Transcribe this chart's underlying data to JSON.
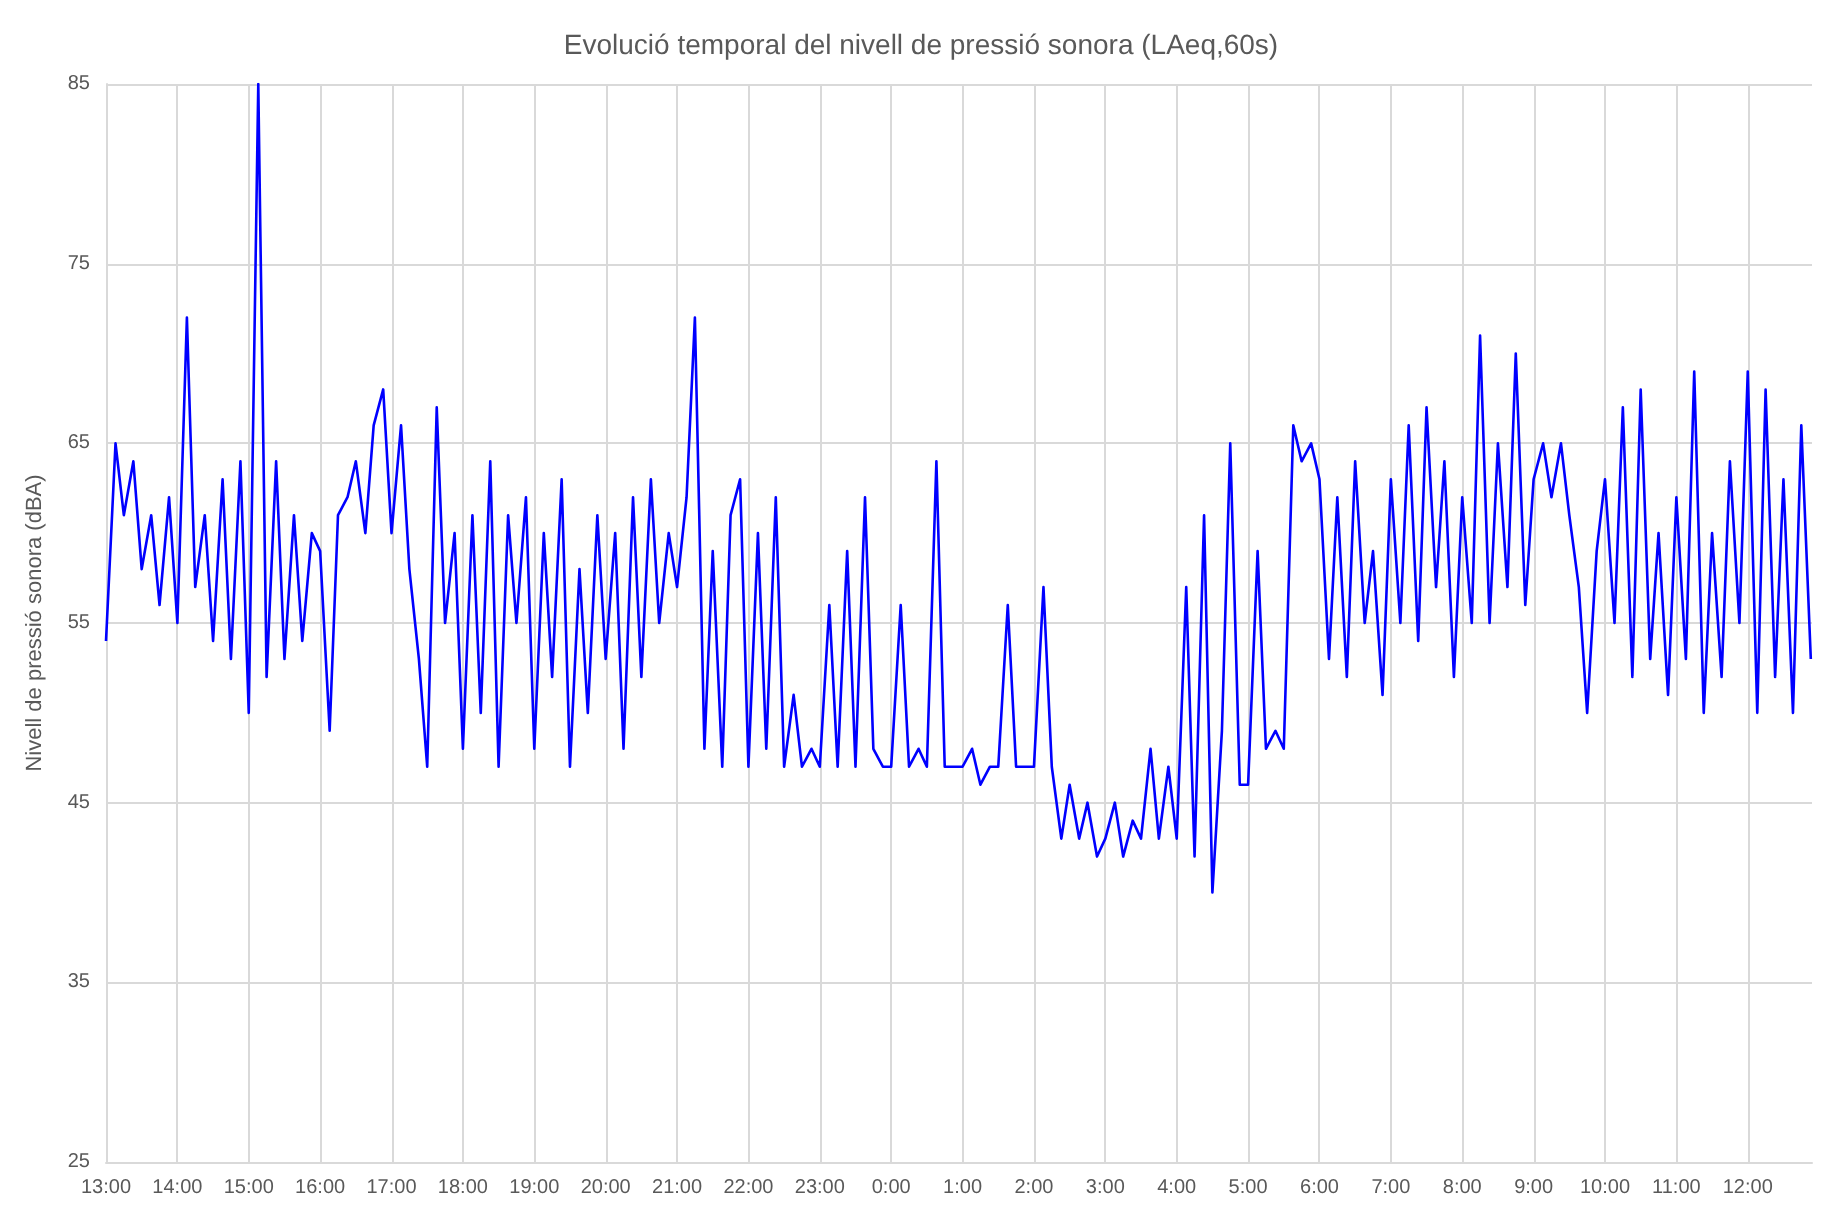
{
  "chart_data": {
    "type": "line",
    "title": "Evolució temporal del nivell de pressió sonora (LAeq,60s)",
    "ylabel": "Nivell de pressió sonora (dBA)",
    "x": [
      "2000-01-01T13:00",
      "2000-01-01T13:08",
      "2000-01-01T13:15",
      "2000-01-01T13:23",
      "2000-01-01T13:30",
      "2000-01-01T13:38",
      "2000-01-01T13:45",
      "2000-01-01T13:53",
      "2000-01-01T14:00",
      "2000-01-01T14:08",
      "2000-01-01T14:15",
      "2000-01-01T14:23",
      "2000-01-01T14:30",
      "2000-01-01T14:38",
      "2000-01-01T14:45",
      "2000-01-01T14:53",
      "2000-01-01T15:00",
      "2000-01-01T15:08",
      "2000-01-01T15:15",
      "2000-01-01T15:23",
      "2000-01-01T15:30",
      "2000-01-01T15:38",
      "2000-01-01T15:45",
      "2000-01-01T15:53",
      "2000-01-01T16:00",
      "2000-01-01T16:08",
      "2000-01-01T16:15",
      "2000-01-01T16:23",
      "2000-01-01T16:30",
      "2000-01-01T16:38",
      "2000-01-01T16:45",
      "2000-01-01T16:53",
      "2000-01-01T17:00",
      "2000-01-01T17:08",
      "2000-01-01T17:15",
      "2000-01-01T17:23",
      "2000-01-01T17:30",
      "2000-01-01T17:38",
      "2000-01-01T17:45",
      "2000-01-01T17:53",
      "2000-01-01T18:00",
      "2000-01-01T18:08",
      "2000-01-01T18:15",
      "2000-01-01T18:23",
      "2000-01-01T18:30",
      "2000-01-01T18:38",
      "2000-01-01T18:45",
      "2000-01-01T18:53",
      "2000-01-01T19:00",
      "2000-01-01T19:08",
      "2000-01-01T19:15",
      "2000-01-01T19:23",
      "2000-01-01T19:30",
      "2000-01-01T19:38",
      "2000-01-01T19:45",
      "2000-01-01T19:53",
      "2000-01-01T20:00",
      "2000-01-01T20:08",
      "2000-01-01T20:15",
      "2000-01-01T20:23",
      "2000-01-01T20:30",
      "2000-01-01T20:38",
      "2000-01-01T20:45",
      "2000-01-01T20:53",
      "2000-01-01T21:00",
      "2000-01-01T21:08",
      "2000-01-01T21:15",
      "2000-01-01T21:23",
      "2000-01-01T21:30",
      "2000-01-01T21:38",
      "2000-01-01T21:45",
      "2000-01-01T21:53",
      "2000-01-01T22:00",
      "2000-01-01T22:08",
      "2000-01-01T22:15",
      "2000-01-01T22:23",
      "2000-01-01T22:30",
      "2000-01-01T22:38",
      "2000-01-01T22:45",
      "2000-01-01T22:53",
      "2000-01-01T23:00",
      "2000-01-01T23:08",
      "2000-01-01T23:15",
      "2000-01-01T23:23",
      "2000-01-01T23:30",
      "2000-01-01T23:38",
      "2000-01-01T23:45",
      "2000-01-01T23:53",
      "2000-01-02T00:00",
      "2000-01-02T00:08",
      "2000-01-02T00:15",
      "2000-01-02T00:23",
      "2000-01-02T00:30",
      "2000-01-02T00:38",
      "2000-01-02T00:45",
      "2000-01-02T00:53",
      "2000-01-02T01:00",
      "2000-01-02T01:08",
      "2000-01-02T01:15",
      "2000-01-02T01:23",
      "2000-01-02T01:30",
      "2000-01-02T01:38",
      "2000-01-02T01:45",
      "2000-01-02T01:53",
      "2000-01-02T02:00",
      "2000-01-02T02:08",
      "2000-01-02T02:15",
      "2000-01-02T02:23",
      "2000-01-02T02:30",
      "2000-01-02T02:38",
      "2000-01-02T02:45",
      "2000-01-02T02:53",
      "2000-01-02T03:00",
      "2000-01-02T03:08",
      "2000-01-02T03:15",
      "2000-01-02T03:23",
      "2000-01-02T03:30",
      "2000-01-02T03:38",
      "2000-01-02T03:45",
      "2000-01-02T03:53",
      "2000-01-02T04:00",
      "2000-01-02T04:08",
      "2000-01-02T04:15",
      "2000-01-02T04:23",
      "2000-01-02T04:30",
      "2000-01-02T04:38",
      "2000-01-02T04:45",
      "2000-01-02T04:53",
      "2000-01-02T05:00",
      "2000-01-02T05:08",
      "2000-01-02T05:15",
      "2000-01-02T05:23",
      "2000-01-02T05:30",
      "2000-01-02T05:38",
      "2000-01-02T05:45",
      "2000-01-02T05:53",
      "2000-01-02T06:00",
      "2000-01-02T06:08",
      "2000-01-02T06:15",
      "2000-01-02T06:23",
      "2000-01-02T06:30",
      "2000-01-02T06:38",
      "2000-01-02T06:45",
      "2000-01-02T06:53",
      "2000-01-02T07:00",
      "2000-01-02T07:08",
      "2000-01-02T07:15",
      "2000-01-02T07:23",
      "2000-01-02T07:30",
      "2000-01-02T07:38",
      "2000-01-02T07:45",
      "2000-01-02T07:53",
      "2000-01-02T08:00",
      "2000-01-02T08:08",
      "2000-01-02T08:15",
      "2000-01-02T08:23",
      "2000-01-02T08:30",
      "2000-01-02T08:38",
      "2000-01-02T08:45",
      "2000-01-02T08:53",
      "2000-01-02T09:00",
      "2000-01-02T09:08",
      "2000-01-02T09:15",
      "2000-01-02T09:23",
      "2000-01-02T09:30",
      "2000-01-02T09:38",
      "2000-01-02T09:45",
      "2000-01-02T09:53",
      "2000-01-02T10:00",
      "2000-01-02T10:08",
      "2000-01-02T10:15",
      "2000-01-02T10:23",
      "2000-01-02T10:30",
      "2000-01-02T10:38",
      "2000-01-02T10:45",
      "2000-01-02T10:53",
      "2000-01-02T11:00",
      "2000-01-02T11:08",
      "2000-01-02T11:15",
      "2000-01-02T11:23",
      "2000-01-02T11:30",
      "2000-01-02T11:38",
      "2000-01-02T11:45",
      "2000-01-02T11:53",
      "2000-01-02T12:00",
      "2000-01-02T12:08",
      "2000-01-02T12:15",
      "2000-01-02T12:23",
      "2000-01-02T12:30",
      "2000-01-02T12:38",
      "2000-01-02T12:45",
      "2000-01-02T12:53"
    ],
    "series": [
      {
        "color": "#0000ff",
        "values": [
          54,
          65,
          61,
          64,
          58,
          61,
          56,
          62,
          55,
          72,
          57,
          61,
          54,
          63,
          53,
          64,
          50,
          85,
          52,
          64,
          53,
          61,
          54,
          60,
          59,
          49,
          61,
          62,
          64,
          60,
          66,
          68,
          60,
          66,
          58,
          53,
          47,
          67,
          55,
          60,
          48,
          61,
          50,
          64,
          47,
          61,
          55,
          62,
          48,
          60,
          52,
          63,
          47,
          58,
          50,
          61,
          53,
          60,
          48,
          62,
          52,
          63,
          55,
          60,
          57,
          62,
          72,
          48,
          59,
          47,
          61,
          63,
          47,
          60,
          48,
          62,
          47,
          51,
          47,
          48,
          47,
          56,
          47,
          59,
          47,
          62,
          48,
          47,
          47,
          56,
          47,
          48,
          47,
          64,
          47,
          47,
          47,
          48,
          46,
          47,
          47,
          56,
          47,
          47,
          47,
          57,
          47,
          43,
          46,
          43,
          45,
          42,
          43,
          45,
          42,
          44,
          43,
          48,
          43,
          47,
          43,
          57,
          42,
          61,
          40,
          49,
          65,
          46,
          46,
          59,
          48,
          49,
          48,
          66,
          64,
          65,
          63,
          53,
          62,
          52,
          64,
          55,
          59,
          51,
          63,
          55,
          66,
          54,
          67,
          57,
          64,
          52,
          62,
          55,
          71,
          55,
          65,
          57,
          70,
          56,
          63,
          65,
          62,
          65,
          61,
          57,
          50,
          59,
          63,
          55,
          67,
          52,
          68,
          53,
          60,
          51,
          62,
          53,
          69,
          50,
          60,
          52,
          64,
          55,
          69,
          50,
          68,
          52,
          63,
          50,
          66,
          53
        ]
      }
    ],
    "xlim": [
      "2000-01-01T13:00",
      "2000-01-02T12:54"
    ],
    "xticks": [
      {
        "value": "2000-01-01T13:00",
        "label": "13:00"
      },
      {
        "value": "2000-01-01T14:00",
        "label": "14:00"
      },
      {
        "value": "2000-01-01T15:00",
        "label": "15:00"
      },
      {
        "value": "2000-01-01T16:00",
        "label": "16:00"
      },
      {
        "value": "2000-01-01T17:00",
        "label": "17:00"
      },
      {
        "value": "2000-01-01T18:00",
        "label": "18:00"
      },
      {
        "value": "2000-01-01T19:00",
        "label": "19:00"
      },
      {
        "value": "2000-01-01T20:00",
        "label": "20:00"
      },
      {
        "value": "2000-01-01T21:00",
        "label": "21:00"
      },
      {
        "value": "2000-01-01T22:00",
        "label": "22:00"
      },
      {
        "value": "2000-01-01T23:00",
        "label": "23:00"
      },
      {
        "value": "2000-01-02T00:00",
        "label": "0:00"
      },
      {
        "value": "2000-01-02T01:00",
        "label": "1:00"
      },
      {
        "value": "2000-01-02T02:00",
        "label": "2:00"
      },
      {
        "value": "2000-01-02T03:00",
        "label": "3:00"
      },
      {
        "value": "2000-01-02T04:00",
        "label": "4:00"
      },
      {
        "value": "2000-01-02T05:00",
        "label": "5:00"
      },
      {
        "value": "2000-01-02T06:00",
        "label": "6:00"
      },
      {
        "value": "2000-01-02T07:00",
        "label": "7:00"
      },
      {
        "value": "2000-01-02T08:00",
        "label": "8:00"
      },
      {
        "value": "2000-01-02T09:00",
        "label": "9:00"
      },
      {
        "value": "2000-01-02T10:00",
        "label": "10:00"
      },
      {
        "value": "2000-01-02T11:00",
        "label": "11:00"
      },
      {
        "value": "2000-01-02T12:00",
        "label": "12:00"
      }
    ],
    "ylim": [
      25,
      85
    ],
    "yticks": [
      25,
      35,
      45,
      55,
      65,
      75,
      85
    ],
    "grid": true,
    "marker": "none",
    "line_style": "solid"
  }
}
